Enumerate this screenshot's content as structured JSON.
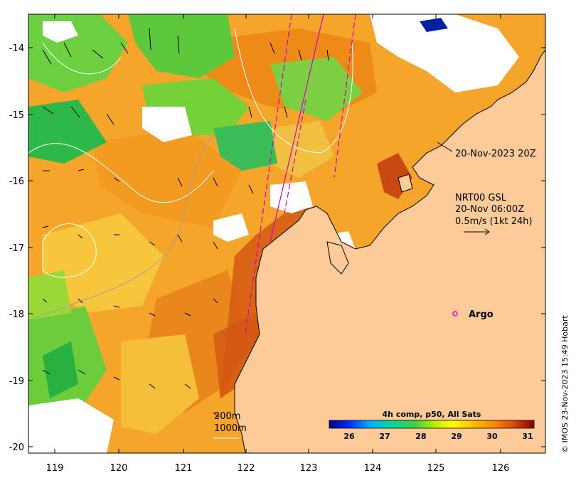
{
  "map": {
    "annotation_time": "20-Nov-2023 20Z",
    "current_label": "NRT00 GSL",
    "current_time": "20-Nov 06:00Z",
    "current_scale": "0.5m/s (1kt 24h)",
    "argo_label": "Argo",
    "isobath_200": "200m",
    "isobath_1000": "1000m",
    "credit": "© IMOS 23-Nov-2023 15:49 Hobart"
  },
  "axes": {
    "x_ticks": [
      "119",
      "120",
      "121",
      "122",
      "123",
      "124",
      "125",
      "126"
    ],
    "y_ticks": [
      "-14",
      "-15",
      "-16",
      "-17",
      "-18",
      "-19",
      "-20"
    ]
  },
  "colorbar": {
    "title": "4h comp, p50, All Sats",
    "ticks": [
      "26",
      "27",
      "28",
      "29",
      "30",
      "31"
    ],
    "range": [
      25.3,
      31.2
    ],
    "colors": [
      "#00008f",
      "#0030ff",
      "#00b0ff",
      "#00e0c0",
      "#00c040",
      "#80e000",
      "#ffff00",
      "#ffc000",
      "#ff8000",
      "#e05000",
      "#a01000",
      "#800000"
    ]
  },
  "colors": {
    "land": "#fdca9a",
    "warm_sea": "#f5a020",
    "hot_sea": "#d85a10",
    "cool_sea": "#4ec838",
    "argo": "#e000e0",
    "track": "#cc00cc"
  }
}
